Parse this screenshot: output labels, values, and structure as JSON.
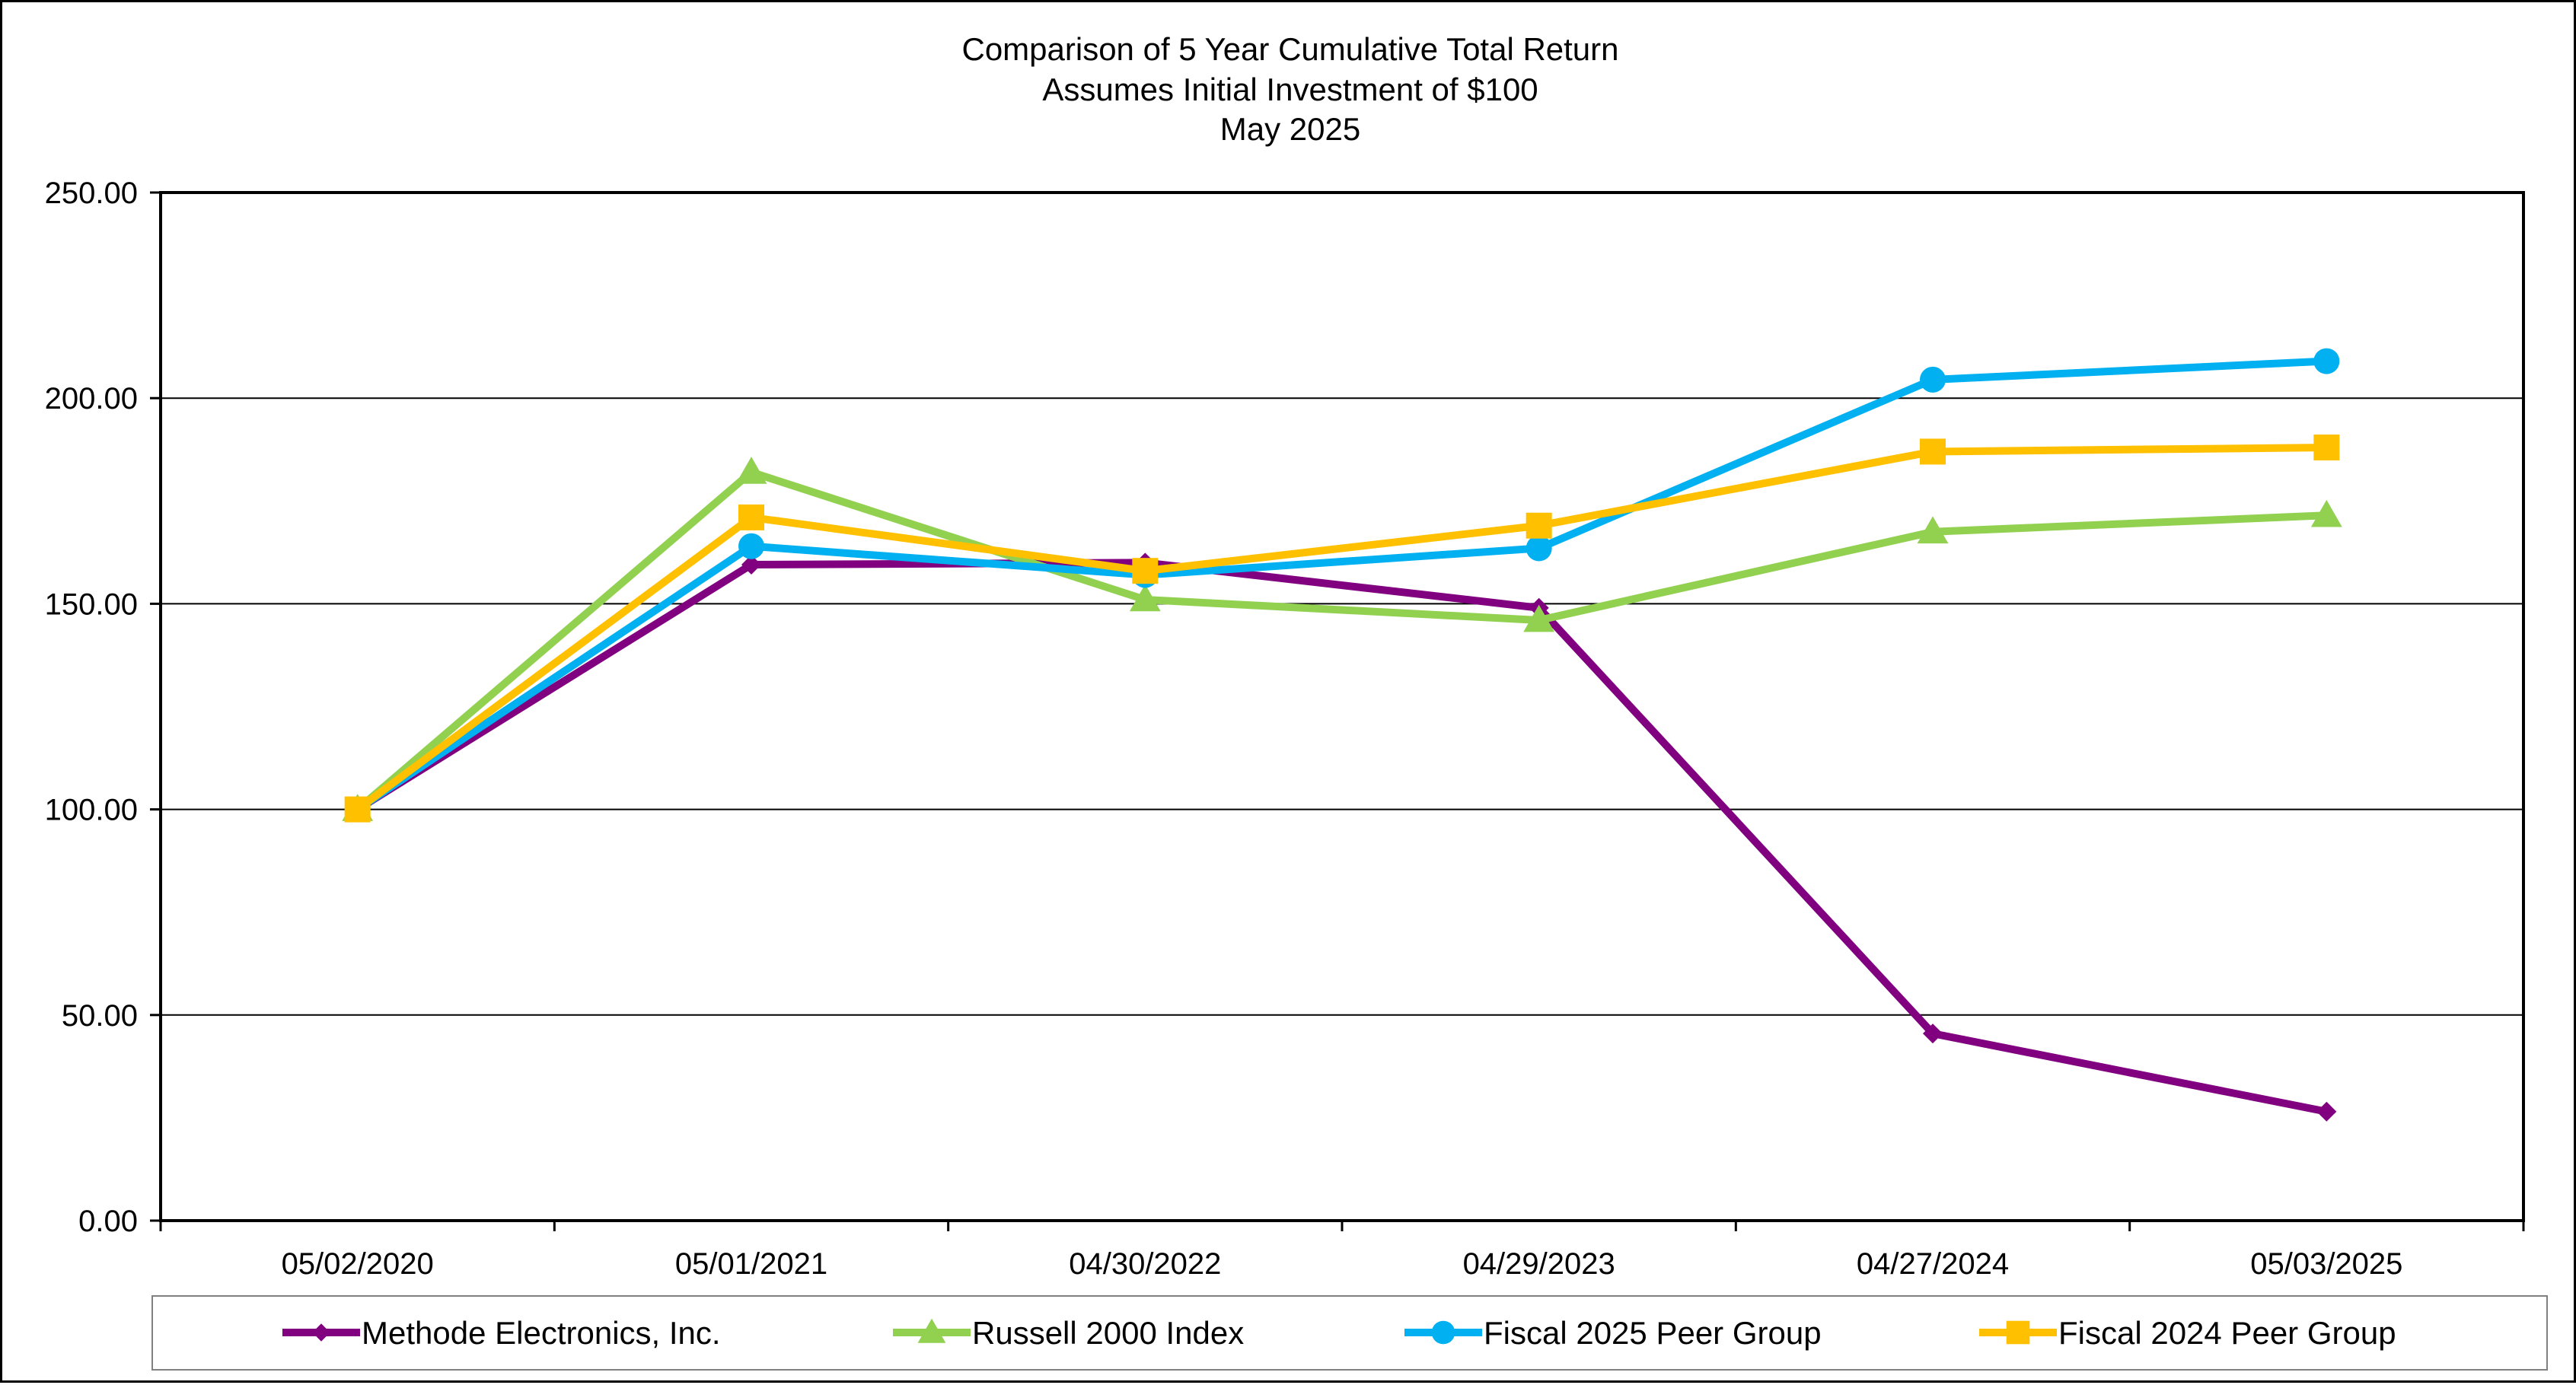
{
  "chart_data": {
    "type": "line",
    "title_lines": [
      "Comparison of 5 Year Cumulative Total Return",
      "Assumes Initial Investment of $100",
      "May 2025"
    ],
    "xlabel": "",
    "ylabel": "",
    "categories": [
      "05/02/2020",
      "05/01/2021",
      "04/30/2022",
      "04/29/2023",
      "04/27/2024",
      "05/03/2025"
    ],
    "ylim": [
      0,
      250
    ],
    "yticks": [
      0,
      50,
      100,
      150,
      200,
      250
    ],
    "ytick_labels": [
      "0.00",
      "50.00",
      "100.00",
      "150.00",
      "200.00",
      "250.00"
    ],
    "grid": "horizontal",
    "legend_position": "bottom",
    "series": [
      {
        "name": "Methode Electronics, Inc.",
        "color": "#800080",
        "marker": "diamond",
        "values": [
          100.0,
          159.5,
          160.0,
          149.0,
          45.5,
          26.5
        ]
      },
      {
        "name": "Russell 2000 Index",
        "color": "#92D050",
        "marker": "triangle",
        "values": [
          100.0,
          182.0,
          151.0,
          146.0,
          167.5,
          171.5
        ]
      },
      {
        "name": "Fiscal 2025 Peer Group",
        "color": "#00B0F0",
        "marker": "circle",
        "values": [
          100.0,
          164.0,
          157.0,
          163.5,
          204.5,
          209.0
        ]
      },
      {
        "name": "Fiscal 2024 Peer Group",
        "color": "#FFC000",
        "marker": "square",
        "values": [
          100.0,
          171.0,
          158.0,
          169.0,
          187.0,
          188.0
        ]
      }
    ]
  }
}
